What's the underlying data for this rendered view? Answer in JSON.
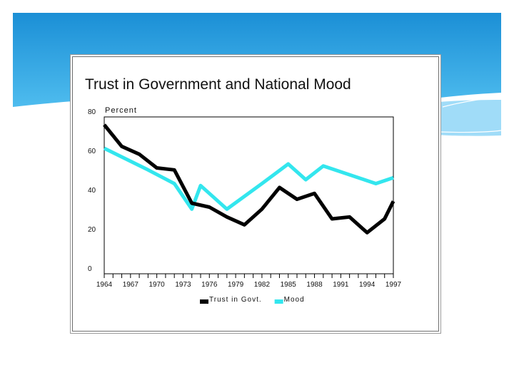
{
  "colors": {
    "slide_gradient_top": "#1b8fd6",
    "slide_gradient_bottom": "#56c3f2",
    "trust_series": "#000000",
    "mood_series": "#33e6ee"
  },
  "chart_data": {
    "type": "line",
    "title": "Trust in Government and National Mood",
    "ylabel": "Percent",
    "xlabel": "",
    "ylim": [
      0,
      80
    ],
    "xlim": [
      1964,
      1997
    ],
    "yticks": [
      0,
      20,
      40,
      60,
      80
    ],
    "xticks": [
      "1964",
      "1967",
      "1970",
      "1973",
      "1976",
      "1979",
      "1982",
      "1985",
      "1988",
      "1991",
      "1994",
      "1997"
    ],
    "grid": false,
    "legend_position": "bottom-center",
    "series": [
      {
        "name": "Trust in Govt.",
        "x": [
          1964,
          1966,
          1968,
          1970,
          1972,
          1974,
          1976,
          1978,
          1980,
          1982,
          1984,
          1986,
          1988,
          1990,
          1992,
          1994,
          1996,
          1997
        ],
        "values": [
          76,
          65,
          61,
          54,
          53,
          36,
          34,
          29,
          25,
          33,
          44,
          38,
          41,
          28,
          29,
          21,
          28,
          37
        ]
      },
      {
        "name": "Mood",
        "x": [
          1964,
          1969,
          1972,
          1974,
          1975,
          1978,
          1982,
          1985,
          1987,
          1989,
          1995,
          1997
        ],
        "values": [
          64,
          53,
          46,
          33,
          45,
          33,
          46,
          56,
          48,
          55,
          46,
          49
        ]
      }
    ]
  }
}
